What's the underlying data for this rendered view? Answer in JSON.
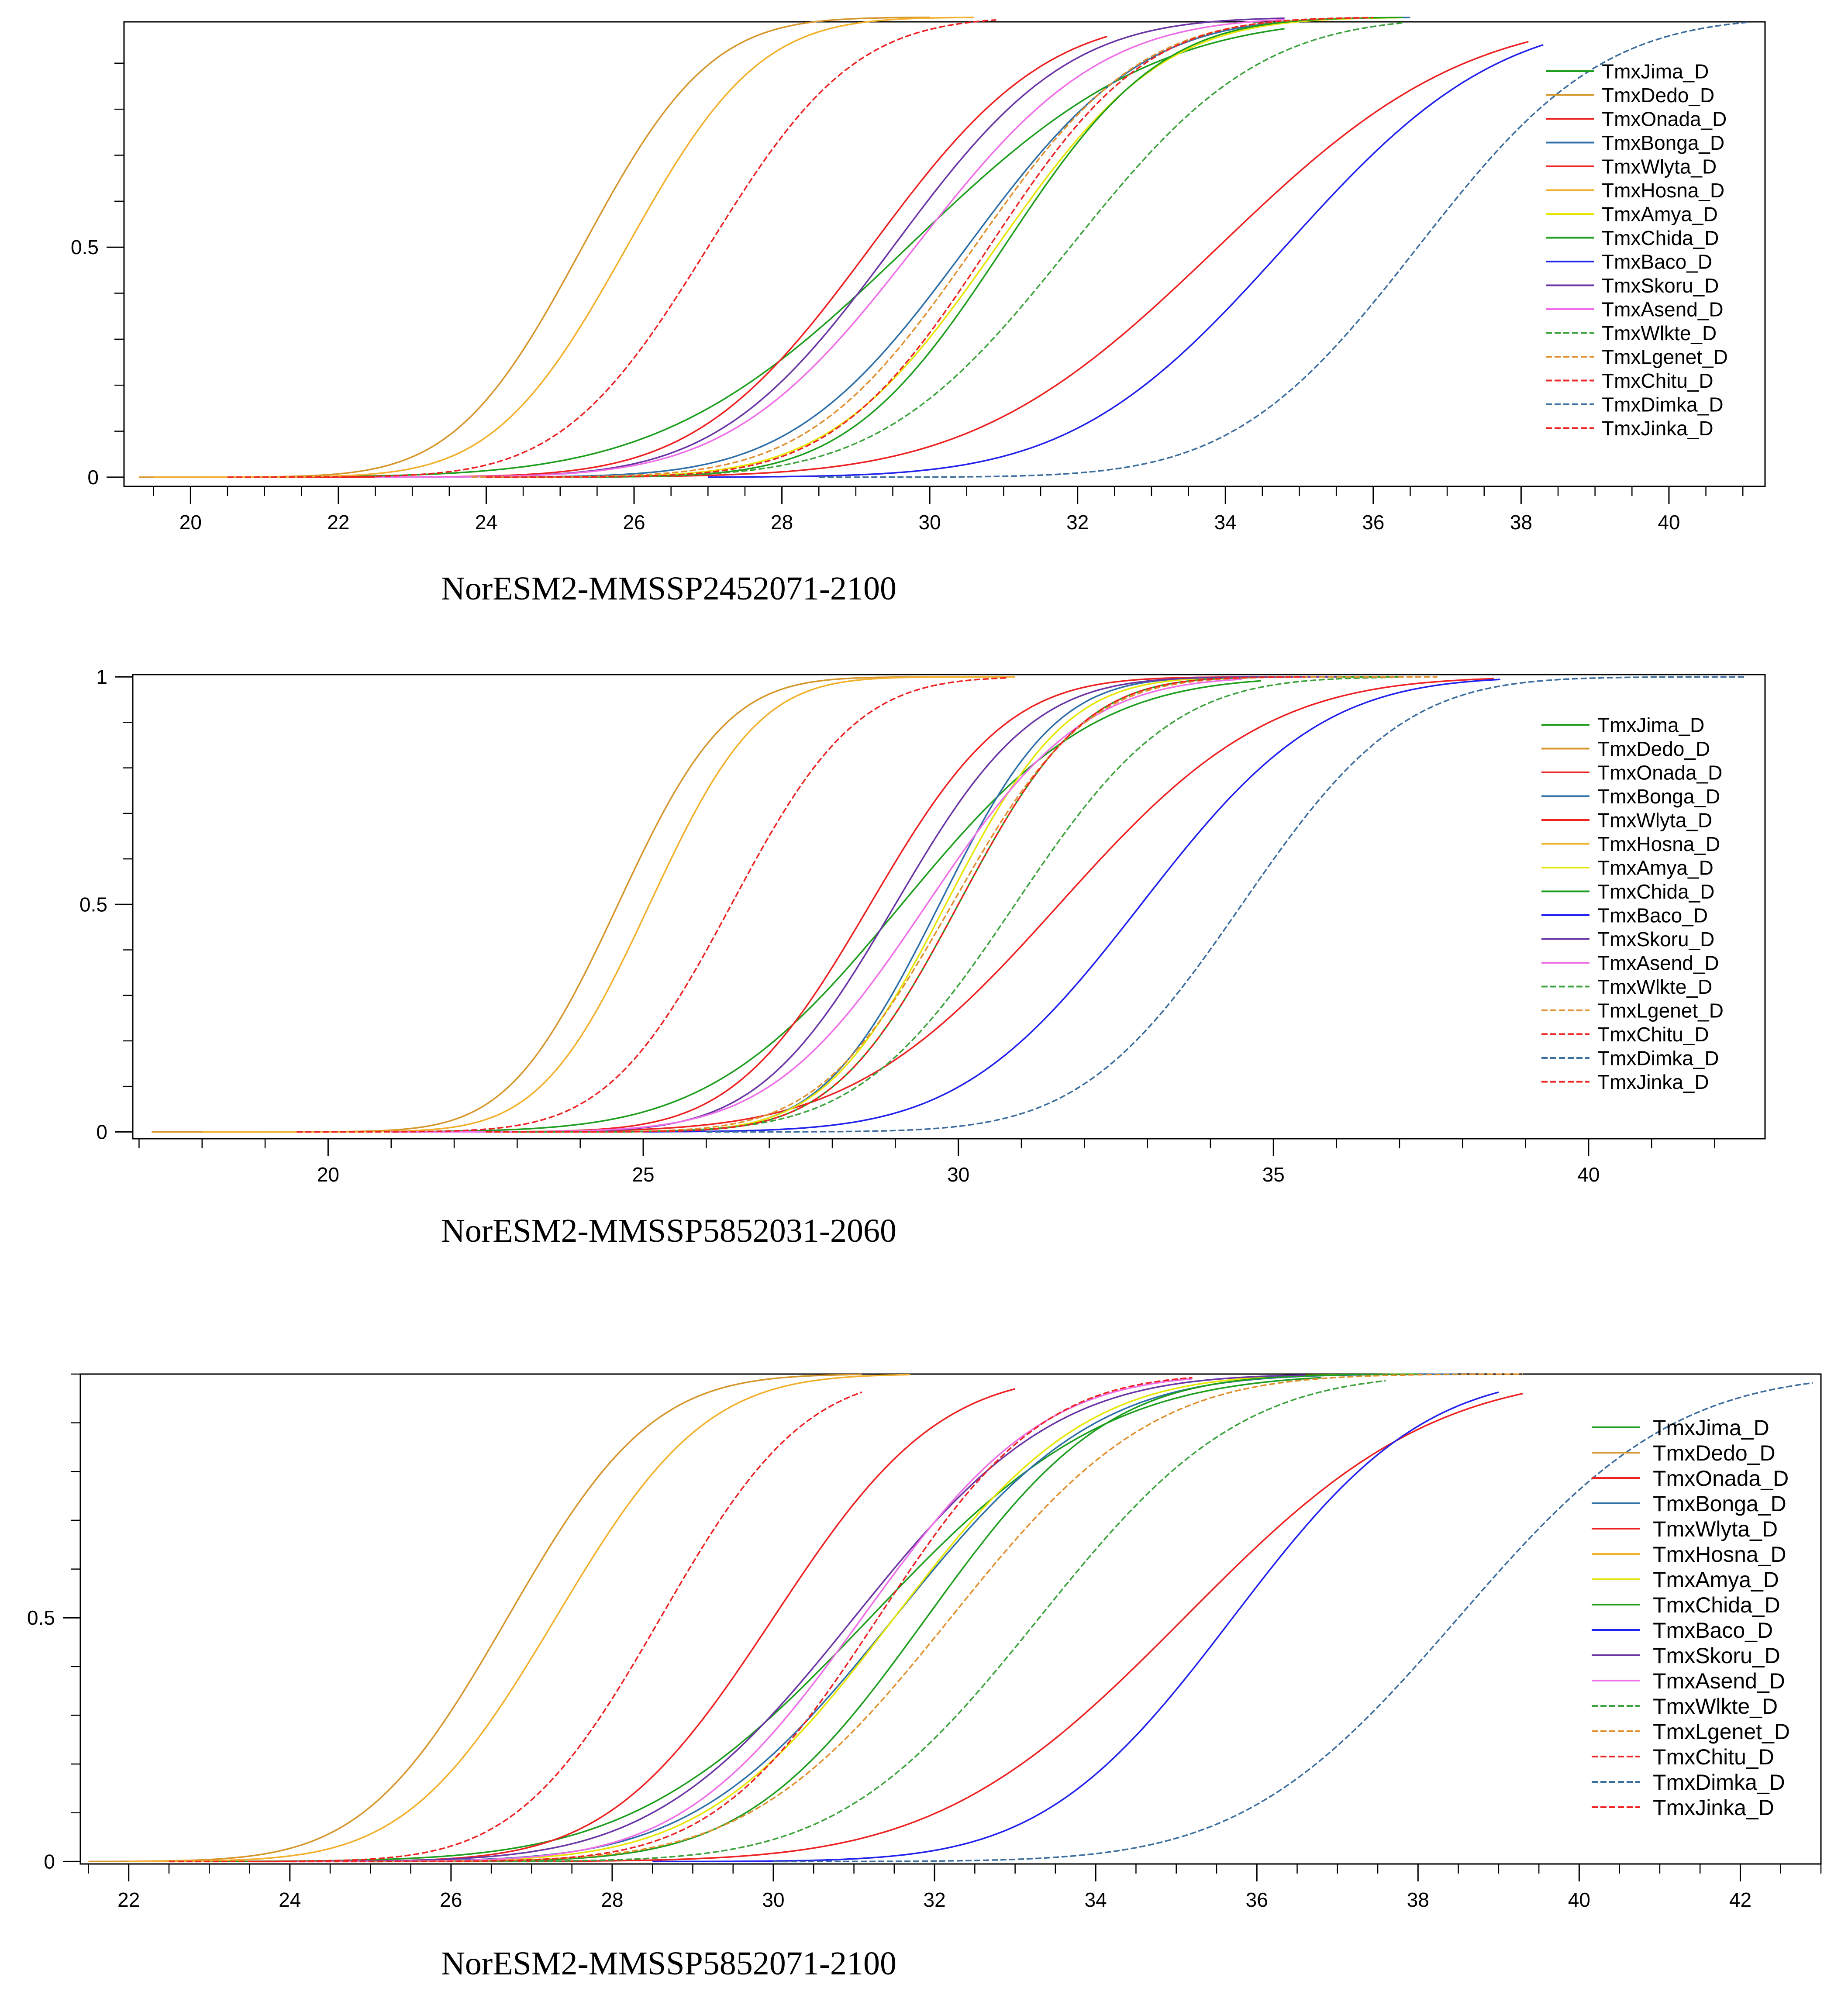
{
  "figure": {
    "captions": [
      "NorESM2-MMSSP2452071-2100",
      "NorESM2-MMSSP5852031-2060",
      "NorESM2-MMSSP5852071-2100"
    ]
  },
  "chart_data": [
    {
      "type": "line",
      "title": "",
      "caption": "NorESM2-MMSSP2452071-2100",
      "xlabel": "",
      "ylabel": "",
      "xlim": [
        19.1,
        41.3
      ],
      "ylim": [
        -0.02,
        0.99
      ],
      "xticks": [
        20,
        22,
        24,
        26,
        28,
        30,
        32,
        34,
        36,
        38,
        40
      ],
      "xtick_labels": [
        "20",
        "22",
        "24",
        "26",
        "28",
        "30",
        "32",
        "34",
        "36",
        "38",
        "40"
      ],
      "xminor_step": 0.5,
      "yticks": [
        0,
        0.5
      ],
      "ytick_labels": [
        "0",
        "0.5"
      ],
      "yminor_step": 0.1,
      "legend_position": "right",
      "series": [
        {
          "name": "TmxJima_D",
          "color": "#1e9e1e",
          "dash": false,
          "mu": 29.7,
          "sigma": 2.6,
          "xstart": 21.5,
          "xend": 34.8
        },
        {
          "name": "TmxDedo_D",
          "color": "#d6962c",
          "dash": false,
          "mu": 25.3,
          "sigma": 1.35,
          "xstart": 19.3,
          "xend": 30.0
        },
        {
          "name": "TmxOnada_D",
          "color": "#ee2222",
          "dash": false,
          "mu": 33.9,
          "sigma": 2.6,
          "xstart": 24.0,
          "xend": 38.1
        },
        {
          "name": "TmxBonga_D",
          "color": "#2e6fa8",
          "dash": false,
          "mu": 30.5,
          "sigma": 1.85,
          "xstart": 24.5,
          "xend": 36.5
        },
        {
          "name": "TmxWlyta_D",
          "color": "#ee2222",
          "dash": false,
          "mu": 29.2,
          "sigma": 1.85,
          "xstart": 21.5,
          "xend": 32.4
        },
        {
          "name": "TmxHosna_D",
          "color": "#f2b02c",
          "dash": false,
          "mu": 25.9,
          "sigma": 1.4,
          "xstart": 19.5,
          "xend": 30.6
        },
        {
          "name": "TmxAmya_D",
          "color": "#e6e600",
          "dash": false,
          "mu": 30.9,
          "sigma": 1.75,
          "xstart": 24.5,
          "xend": 36.4
        },
        {
          "name": "TmxChida_D",
          "color": "#1e9e1e",
          "dash": false,
          "mu": 31.0,
          "sigma": 1.65,
          "xstart": 24.5,
          "xend": 36.4
        },
        {
          "name": "TmxBaco_D",
          "color": "#2222ee",
          "dash": false,
          "mu": 34.8,
          "sigma": 2.25,
          "xstart": 27.0,
          "xend": 38.3
        },
        {
          "name": "TmxSkoru_D",
          "color": "#6a35a5",
          "dash": false,
          "mu": 29.5,
          "sigma": 1.85,
          "xstart": 22.5,
          "xend": 34.8
        },
        {
          "name": "TmxAsend_D",
          "color": "#f06ee8",
          "dash": false,
          "mu": 29.8,
          "sigma": 1.95,
          "xstart": 22.5,
          "xend": 34.8
        },
        {
          "name": "TmxWlkte_D",
          "color": "#3da33d",
          "dash": true,
          "mu": 31.9,
          "sigma": 2.0,
          "xstart": 24.5,
          "xend": 36.4
        },
        {
          "name": "TmxLgenet_D",
          "color": "#e0902e",
          "dash": true,
          "mu": 30.6,
          "sigma": 1.75,
          "xstart": 23.8,
          "xend": 36.0
        },
        {
          "name": "TmxChitu_D",
          "color": "#ee2222",
          "dash": true,
          "mu": 27.0,
          "sigma": 1.55,
          "xstart": 20.5,
          "xend": 30.9
        },
        {
          "name": "TmxDimka_D",
          "color": "#3b6d9e",
          "dash": true,
          "mu": 36.6,
          "sigma": 1.95,
          "xstart": 28.5,
          "xend": 41.1
        },
        {
          "name": "TmxJinka_D",
          "color": "#ee2222",
          "dash": true,
          "mu": 30.8,
          "sigma": 1.65,
          "xstart": 24.0,
          "xend": 36.0
        }
      ]
    },
    {
      "type": "line",
      "title": "",
      "caption": "NorESM2-MMSSP5852031-2060",
      "xlabel": "",
      "ylabel": "",
      "xlim": [
        16.9,
        42.8
      ],
      "ylim": [
        -0.015,
        1.005
      ],
      "xticks": [
        20,
        25,
        30,
        35,
        40
      ],
      "xtick_labels": [
        "20",
        "25",
        "30",
        "35",
        "40"
      ],
      "xminor_step": 1,
      "yticks": [
        0,
        0.5,
        1
      ],
      "ytick_labels": [
        "0",
        "0.5",
        "1"
      ],
      "yminor_step": 0.1,
      "legend_position": "right",
      "series": [
        {
          "name": "TmxJima_D",
          "color": "#1e9e1e",
          "dash": false,
          "mu": 29.1,
          "sigma": 2.4,
          "xstart": 21.5,
          "xend": 34.8
        },
        {
          "name": "TmxDedo_D",
          "color": "#d6962c",
          "dash": false,
          "mu": 24.6,
          "sigma": 1.35,
          "xstart": 17.2,
          "xend": 30.5
        },
        {
          "name": "TmxOnada_D",
          "color": "#ee2222",
          "dash": false,
          "mu": 31.6,
          "sigma": 2.6,
          "xstart": 22.5,
          "xend": 38.5
        },
        {
          "name": "TmxBonga_D",
          "color": "#2e6fa8",
          "dash": false,
          "mu": 29.7,
          "sigma": 1.45,
          "xstart": 23.0,
          "xend": 37.0
        },
        {
          "name": "TmxWlyta_D",
          "color": "#ee2222",
          "dash": false,
          "mu": 28.6,
          "sigma": 1.7,
          "xstart": 21.0,
          "xend": 36.0
        },
        {
          "name": "TmxHosna_D",
          "color": "#f2b02c",
          "dash": false,
          "mu": 25.1,
          "sigma": 1.35,
          "xstart": 18.0,
          "xend": 30.9
        },
        {
          "name": "TmxAmya_D",
          "color": "#e6e600",
          "dash": false,
          "mu": 29.8,
          "sigma": 1.5,
          "xstart": 23.0,
          "xend": 37.0
        },
        {
          "name": "TmxChida_D",
          "color": "#1e9e1e",
          "dash": false,
          "mu": 30.0,
          "sigma": 1.55,
          "xstart": 23.0,
          "xend": 37.0
        },
        {
          "name": "TmxBaco_D",
          "color": "#2222ee",
          "dash": false,
          "mu": 32.9,
          "sigma": 2.25,
          "xstart": 25.0,
          "xend": 38.6
        },
        {
          "name": "TmxSkoru_D",
          "color": "#6a35a5",
          "dash": false,
          "mu": 29.0,
          "sigma": 1.7,
          "xstart": 21.0,
          "xend": 36.0
        },
        {
          "name": "TmxAsend_D",
          "color": "#f06ee8",
          "dash": false,
          "mu": 29.5,
          "sigma": 1.95,
          "xstart": 21.0,
          "xend": 34.5
        },
        {
          "name": "TmxWlkte_D",
          "color": "#3da33d",
          "dash": true,
          "mu": 30.9,
          "sigma": 1.95,
          "xstart": 23.0,
          "xend": 36.9
        },
        {
          "name": "TmxLgenet_D",
          "color": "#e0902e",
          "dash": true,
          "mu": 29.9,
          "sigma": 1.65,
          "xstart": 22.5,
          "xend": 37.6
        },
        {
          "name": "TmxChitu_D",
          "color": "#ee2222",
          "dash": true,
          "mu": 26.4,
          "sigma": 1.55,
          "xstart": 19.5,
          "xend": 30.8
        },
        {
          "name": "TmxDimka_D",
          "color": "#3b6d9e",
          "dash": true,
          "mu": 34.5,
          "sigma": 2.0,
          "xstart": 26.0,
          "xend": 42.5
        },
        {
          "name": "TmxJinka_D",
          "color": "#ee2222",
          "dash": true,
          "mu": 30.0,
          "sigma": 1.55,
          "xstart": 22.5,
          "xend": 35.5
        }
      ]
    },
    {
      "type": "line",
      "title": "",
      "caption": "NorESM2-MMSSP5852071-2100",
      "xlabel": "",
      "ylabel": "",
      "xlim": [
        21.4,
        43.0
      ],
      "ylim": [
        -0.005,
        1.0
      ],
      "xticks": [
        22,
        24,
        26,
        28,
        30,
        32,
        34,
        36,
        38,
        40,
        42
      ],
      "xtick_labels": [
        "22",
        "24",
        "26",
        "28",
        "30",
        "32",
        "34",
        "36",
        "38",
        "40",
        "42"
      ],
      "xminor_step": 0.5,
      "yticks": [
        0,
        0.5
      ],
      "ytick_labels": [
        "0",
        "0.5"
      ],
      "yminor_step": 0.1,
      "legend_position": "right",
      "series": [
        {
          "name": "TmxJima_D",
          "color": "#1e9e1e",
          "dash": false,
          "mu": 31.2,
          "sigma": 2.3,
          "xstart": 23.0,
          "xend": 36.8
        },
        {
          "name": "TmxDedo_D",
          "color": "#d6962c",
          "dash": false,
          "mu": 26.7,
          "sigma": 1.4,
          "xstart": 21.5,
          "xend": 31.1
        },
        {
          "name": "TmxOnada_D",
          "color": "#ee2222",
          "dash": false,
          "mu": 35.1,
          "sigma": 2.4,
          "xstart": 26.5,
          "xend": 39.3
        },
        {
          "name": "TmxBonga_D",
          "color": "#2e6fa8",
          "dash": false,
          "mu": 31.5,
          "sigma": 1.95,
          "xstart": 25.0,
          "xend": 38.5
        },
        {
          "name": "TmxWlyta_D",
          "color": "#ee2222",
          "dash": false,
          "mu": 30.0,
          "sigma": 1.6,
          "xstart": 23.5,
          "xend": 33.0
        },
        {
          "name": "TmxHosna_D",
          "color": "#f2b02c",
          "dash": false,
          "mu": 27.3,
          "sigma": 1.45,
          "xstart": 22.0,
          "xend": 31.7
        },
        {
          "name": "TmxAmya_D",
          "color": "#e6e600",
          "dash": false,
          "mu": 31.5,
          "sigma": 1.85,
          "xstart": 25.0,
          "xend": 38.0
        },
        {
          "name": "TmxChida_D",
          "color": "#1e9e1e",
          "dash": false,
          "mu": 31.9,
          "sigma": 1.75,
          "xstart": 25.0,
          "xend": 38.0
        },
        {
          "name": "TmxBaco_D",
          "color": "#2222ee",
          "dash": false,
          "mu": 35.7,
          "sigma": 1.85,
          "xstart": 28.5,
          "xend": 39.0
        },
        {
          "name": "TmxSkoru_D",
          "color": "#6a35a5",
          "dash": false,
          "mu": 31.0,
          "sigma": 1.95,
          "xstart": 24.0,
          "xend": 36.6
        },
        {
          "name": "TmxAsend_D",
          "color": "#f06ee8",
          "dash": false,
          "mu": 31.1,
          "sigma": 1.75,
          "xstart": 24.0,
          "xend": 35.2
        },
        {
          "name": "TmxWlkte_D",
          "color": "#3da33d",
          "dash": true,
          "mu": 33.3,
          "sigma": 1.95,
          "xstart": 26.0,
          "xend": 37.6
        },
        {
          "name": "TmxLgenet_D",
          "color": "#e0902e",
          "dash": true,
          "mu": 32.2,
          "sigma": 1.95,
          "xstart": 25.0,
          "xend": 39.3
        },
        {
          "name": "TmxChitu_D",
          "color": "#ee2222",
          "dash": true,
          "mu": 28.6,
          "sigma": 1.4,
          "xstart": 22.5,
          "xend": 31.1
        },
        {
          "name": "TmxDimka_D",
          "color": "#3b6d9e",
          "dash": true,
          "mu": 38.5,
          "sigma": 2.1,
          "xstart": 30.0,
          "xend": 42.9
        },
        {
          "name": "TmxJinka_D",
          "color": "#ee2222",
          "dash": true,
          "mu": 31.3,
          "sigma": 1.6,
          "xstart": 24.0,
          "xend": 35.2
        }
      ]
    }
  ]
}
